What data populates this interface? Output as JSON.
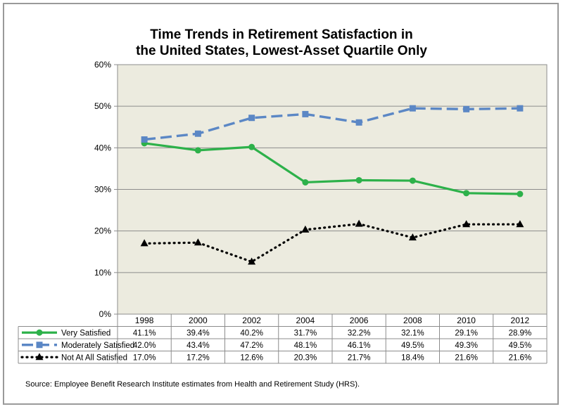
{
  "chart_data": {
    "type": "line",
    "title_lines": [
      "Time Trends in Retirement Satisfaction in",
      "the United States, Lowest-Asset Quartile Only"
    ],
    "categories": [
      "1998",
      "2000",
      "2002",
      "2004",
      "2006",
      "2008",
      "2010",
      "2012"
    ],
    "ylim": [
      0,
      60
    ],
    "yticks": [
      "0%",
      "10%",
      "20%",
      "30%",
      "40%",
      "50%",
      "60%"
    ],
    "grid": true,
    "legend": "data-table",
    "series": [
      {
        "name": "Very Satisfied",
        "values": [
          41.1,
          39.4,
          40.2,
          31.7,
          32.2,
          32.1,
          29.1,
          28.9
        ],
        "labels": [
          "41.1%",
          "39.4%",
          "40.2%",
          "31.7%",
          "32.2%",
          "32.1%",
          "29.1%",
          "28.9%"
        ],
        "color": "#2db14a",
        "marker": "circle",
        "dash": "solid"
      },
      {
        "name": "Moderately Satisfied",
        "values": [
          42.0,
          43.4,
          47.2,
          48.1,
          46.1,
          49.5,
          49.3,
          49.5
        ],
        "labels": [
          "42.0%",
          "43.4%",
          "47.2%",
          "48.1%",
          "46.1%",
          "49.5%",
          "49.3%",
          "49.5%"
        ],
        "color": "#5b87c5",
        "marker": "square",
        "dash": "long-dash"
      },
      {
        "name": "Not At All Satisfied",
        "values": [
          17.0,
          17.2,
          12.6,
          20.3,
          21.7,
          18.4,
          21.6,
          21.6
        ],
        "labels": [
          "17.0%",
          "17.2%",
          "12.6%",
          "20.3%",
          "21.7%",
          "18.4%",
          "21.6%",
          "21.6%"
        ],
        "color": "#000000",
        "marker": "triangle",
        "dash": "dotted"
      }
    ],
    "plot_background": "#ecebdf"
  },
  "source": "Source: Employee Benefit Research Institute estimates from Health and Retirement Study (HRS)."
}
